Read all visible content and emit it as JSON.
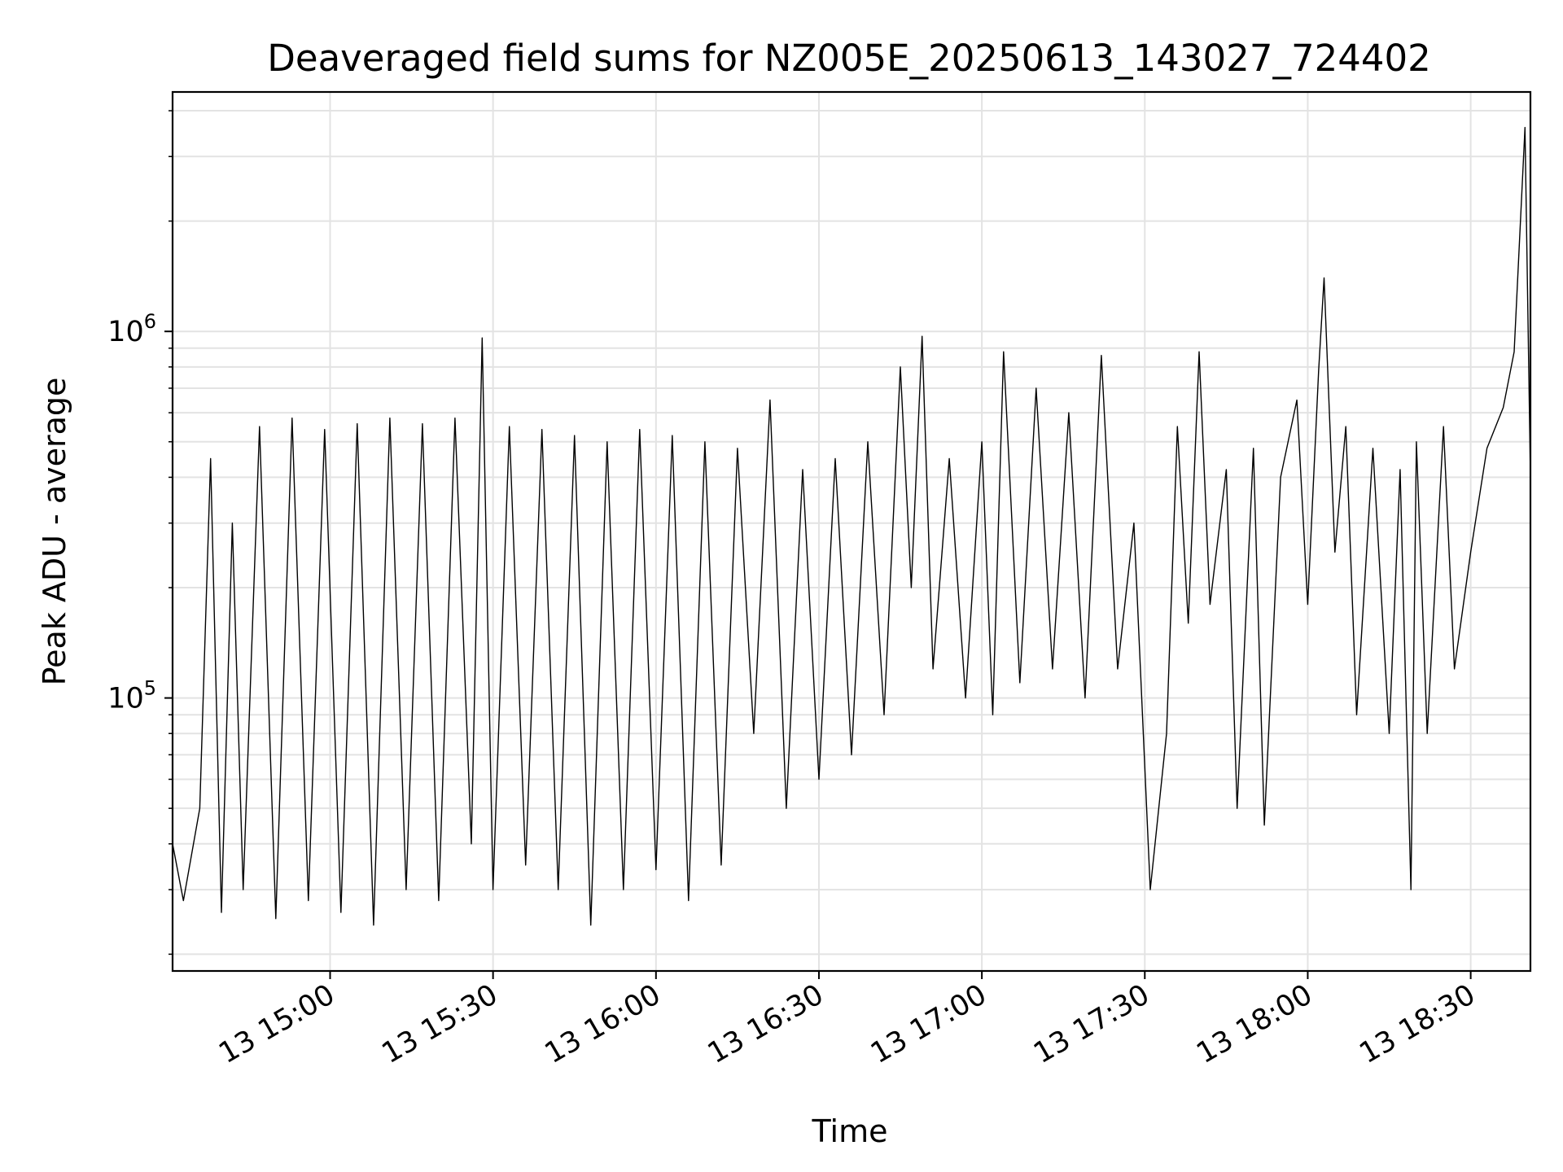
{
  "chart_data": {
    "type": "line",
    "title": "Deaveraged field sums for NZ005E_20250613_143027_724402",
    "xlabel": "Time",
    "ylabel": "Peak ADU - average",
    "yscale": "log",
    "xlim": [
      "2025-06-13 14:31",
      "2025-06-13 18:41"
    ],
    "ylim": [
      18000,
      4500000
    ],
    "x_ticks": [
      "13 15:00",
      "13 15:30",
      "13 16:00",
      "13 16:30",
      "13 17:00",
      "13 17:30",
      "13 18:00",
      "13 18:30"
    ],
    "y_ticks": [
      {
        "base": "10",
        "exponent": "5",
        "value": 100000
      },
      {
        "base": "10",
        "exponent": "6",
        "value": 1000000
      }
    ],
    "grid": true,
    "line_color": "#000000",
    "series": [
      {
        "points": [
          [
            "2025-06-13 14:31",
            40000
          ],
          [
            "2025-06-13 14:33",
            28000
          ],
          [
            "2025-06-13 14:36",
            50000
          ],
          [
            "2025-06-13 14:38",
            450000
          ],
          [
            "2025-06-13 14:40",
            26000
          ],
          [
            "2025-06-13 14:42",
            300000
          ],
          [
            "2025-06-13 14:44",
            30000
          ],
          [
            "2025-06-13 14:47",
            550000
          ],
          [
            "2025-06-13 14:50",
            25000
          ],
          [
            "2025-06-13 14:53",
            580000
          ],
          [
            "2025-06-13 14:56",
            28000
          ],
          [
            "2025-06-13 14:59",
            540000
          ],
          [
            "2025-06-13 15:02",
            26000
          ],
          [
            "2025-06-13 15:05",
            560000
          ],
          [
            "2025-06-13 15:08",
            24000
          ],
          [
            "2025-06-13 15:11",
            580000
          ],
          [
            "2025-06-13 15:14",
            30000
          ],
          [
            "2025-06-13 15:17",
            560000
          ],
          [
            "2025-06-13 15:20",
            28000
          ],
          [
            "2025-06-13 15:23",
            580000
          ],
          [
            "2025-06-13 15:26",
            40000
          ],
          [
            "2025-06-13 15:28",
            960000
          ],
          [
            "2025-06-13 15:30",
            30000
          ],
          [
            "2025-06-13 15:33",
            550000
          ],
          [
            "2025-06-13 15:36",
            35000
          ],
          [
            "2025-06-13 15:39",
            540000
          ],
          [
            "2025-06-13 15:42",
            30000
          ],
          [
            "2025-06-13 15:45",
            520000
          ],
          [
            "2025-06-13 15:48",
            24000
          ],
          [
            "2025-06-13 15:51",
            500000
          ],
          [
            "2025-06-13 15:54",
            30000
          ],
          [
            "2025-06-13 15:57",
            540000
          ],
          [
            "2025-06-13 16:00",
            34000
          ],
          [
            "2025-06-13 16:03",
            520000
          ],
          [
            "2025-06-13 16:06",
            28000
          ],
          [
            "2025-06-13 16:09",
            500000
          ],
          [
            "2025-06-13 16:12",
            35000
          ],
          [
            "2025-06-13 16:15",
            480000
          ],
          [
            "2025-06-13 16:18",
            80000
          ],
          [
            "2025-06-13 16:21",
            650000
          ],
          [
            "2025-06-13 16:24",
            50000
          ],
          [
            "2025-06-13 16:27",
            420000
          ],
          [
            "2025-06-13 16:30",
            60000
          ],
          [
            "2025-06-13 16:33",
            450000
          ],
          [
            "2025-06-13 16:36",
            70000
          ],
          [
            "2025-06-13 16:39",
            500000
          ],
          [
            "2025-06-13 16:42",
            90000
          ],
          [
            "2025-06-13 16:45",
            800000
          ],
          [
            "2025-06-13 16:47",
            200000
          ],
          [
            "2025-06-13 16:49",
            970000
          ],
          [
            "2025-06-13 16:51",
            120000
          ],
          [
            "2025-06-13 16:54",
            450000
          ],
          [
            "2025-06-13 16:57",
            100000
          ],
          [
            "2025-06-13 17:00",
            500000
          ],
          [
            "2025-06-13 17:02",
            90000
          ],
          [
            "2025-06-13 17:04",
            880000
          ],
          [
            "2025-06-13 17:07",
            110000
          ],
          [
            "2025-06-13 17:10",
            700000
          ],
          [
            "2025-06-13 17:13",
            120000
          ],
          [
            "2025-06-13 17:16",
            600000
          ],
          [
            "2025-06-13 17:19",
            100000
          ],
          [
            "2025-06-13 17:22",
            860000
          ],
          [
            "2025-06-13 17:25",
            120000
          ],
          [
            "2025-06-13 17:28",
            300000
          ],
          [
            "2025-06-13 17:31",
            30000
          ],
          [
            "2025-06-13 17:34",
            80000
          ],
          [
            "2025-06-13 17:36",
            550000
          ],
          [
            "2025-06-13 17:38",
            160000
          ],
          [
            "2025-06-13 17:40",
            880000
          ],
          [
            "2025-06-13 17:42",
            180000
          ],
          [
            "2025-06-13 17:45",
            420000
          ],
          [
            "2025-06-13 17:47",
            50000
          ],
          [
            "2025-06-13 17:50",
            480000
          ],
          [
            "2025-06-13 17:52",
            45000
          ],
          [
            "2025-06-13 17:55",
            400000
          ],
          [
            "2025-06-13 17:58",
            650000
          ],
          [
            "2025-06-13 18:00",
            180000
          ],
          [
            "2025-06-13 18:02",
            780000
          ],
          [
            "2025-06-13 18:03",
            1400000
          ],
          [
            "2025-06-13 18:05",
            250000
          ],
          [
            "2025-06-13 18:07",
            550000
          ],
          [
            "2025-06-13 18:09",
            90000
          ],
          [
            "2025-06-13 18:12",
            480000
          ],
          [
            "2025-06-13 18:15",
            80000
          ],
          [
            "2025-06-13 18:17",
            420000
          ],
          [
            "2025-06-13 18:19",
            30000
          ],
          [
            "2025-06-13 18:20",
            500000
          ],
          [
            "2025-06-13 18:22",
            80000
          ],
          [
            "2025-06-13 18:25",
            550000
          ],
          [
            "2025-06-13 18:27",
            120000
          ],
          [
            "2025-06-13 18:30",
            250000
          ],
          [
            "2025-06-13 18:33",
            480000
          ],
          [
            "2025-06-13 18:36",
            620000
          ],
          [
            "2025-06-13 18:38",
            880000
          ],
          [
            "2025-06-13 18:40",
            3600000
          ],
          [
            "2025-06-13 18:41",
            400000
          ]
        ]
      }
    ]
  }
}
